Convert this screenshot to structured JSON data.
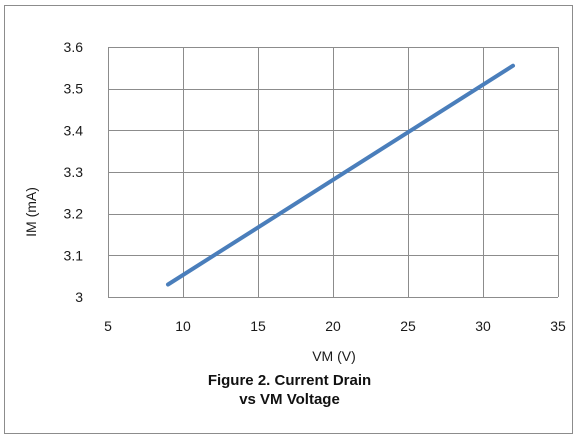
{
  "chart_data": {
    "type": "line",
    "xlabel": "VM (V)",
    "ylabel": "IM (mA)",
    "xlim": [
      5,
      35
    ],
    "ylim": [
      3,
      3.6
    ],
    "xticks": [
      5,
      10,
      15,
      20,
      25,
      30,
      35
    ],
    "yticks": [
      3,
      3.1,
      3.2,
      3.3,
      3.4,
      3.5,
      3.6
    ],
    "grid": true,
    "legend": "none",
    "series": [
      {
        "color": "#4a7ebb",
        "x": [
          9,
          32
        ],
        "y": [
          3.03,
          3.555
        ]
      }
    ]
  },
  "caption": {
    "line1": "Figure 2.  Current Drain",
    "line2": "vs VM Voltage"
  },
  "colors": {
    "line": "#4a7ebb",
    "grid": "#8c8c8c"
  }
}
